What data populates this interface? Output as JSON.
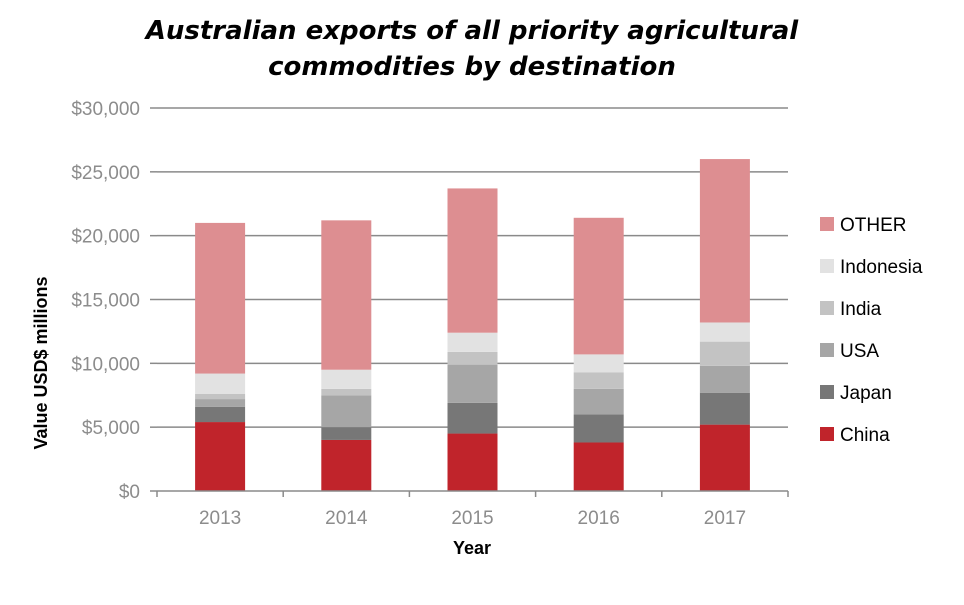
{
  "chart_data": {
    "type": "bar",
    "stacked": true,
    "title": "Australian exports of all priority agricultural commodities by destination",
    "title_lines": [
      "Australian exports of all priority agricultural",
      "commodities by destination"
    ],
    "xlabel": "Year",
    "ylabel": "Value USD$ millions",
    "categories": [
      "2013",
      "2014",
      "2015",
      "2016",
      "2017"
    ],
    "ylim": [
      0,
      30000
    ],
    "yticks": [
      0,
      5000,
      10000,
      15000,
      20000,
      25000,
      30000
    ],
    "ytick_labels": [
      "$0",
      "$5,000",
      "$10,000",
      "$15,000",
      "$20,000",
      "$25,000",
      "$30,000"
    ],
    "grid": true,
    "legend_position": "right",
    "series": [
      {
        "name": "China",
        "color": "#c0242b",
        "values": [
          5400,
          4000,
          4500,
          3800,
          5200
        ]
      },
      {
        "name": "Japan",
        "color": "#777777",
        "values": [
          1200,
          1000,
          2400,
          2200,
          2500
        ]
      },
      {
        "name": "USA",
        "color": "#a6a6a6",
        "values": [
          600,
          2500,
          3000,
          2000,
          2100
        ]
      },
      {
        "name": "India",
        "color": "#c3c3c3",
        "values": [
          400,
          500,
          1000,
          1300,
          1900
        ]
      },
      {
        "name": "Indonesia",
        "color": "#e2e2e2",
        "values": [
          1600,
          1500,
          1500,
          1400,
          1500
        ]
      },
      {
        "name": "OTHER",
        "color": "#dd8e91",
        "values": [
          11800,
          11700,
          11300,
          10700,
          12800
        ]
      }
    ]
  }
}
